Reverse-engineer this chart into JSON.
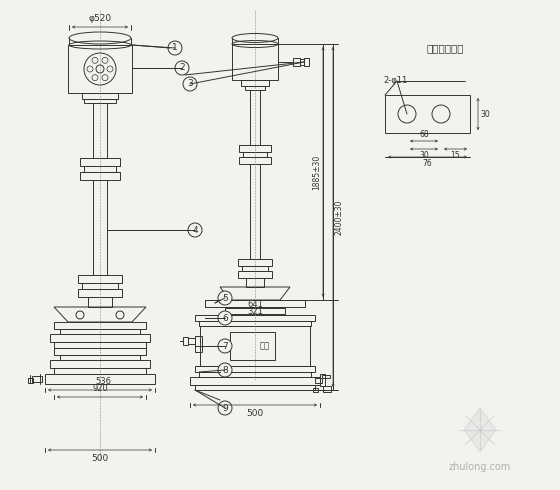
{
  "bg_color": "#f2f2ee",
  "line_color": "#333333",
  "dim_color": "#333333",
  "title_text": "一次端子尺寸",
  "dim_labels": {
    "phi520": "φ520",
    "d536": "536",
    "d920": "920",
    "d500_left": "500",
    "d500_right": "500",
    "d641": "641",
    "d321": "321",
    "d1885": "1885±30",
    "d2400": "2400±30",
    "d2_phi11": "2-φ11",
    "d68": "68",
    "d30": "30",
    "d15": "15",
    "d76": "76",
    "d30_vert": "30"
  },
  "watermark": "zhulong.com",
  "lw": 0.7
}
